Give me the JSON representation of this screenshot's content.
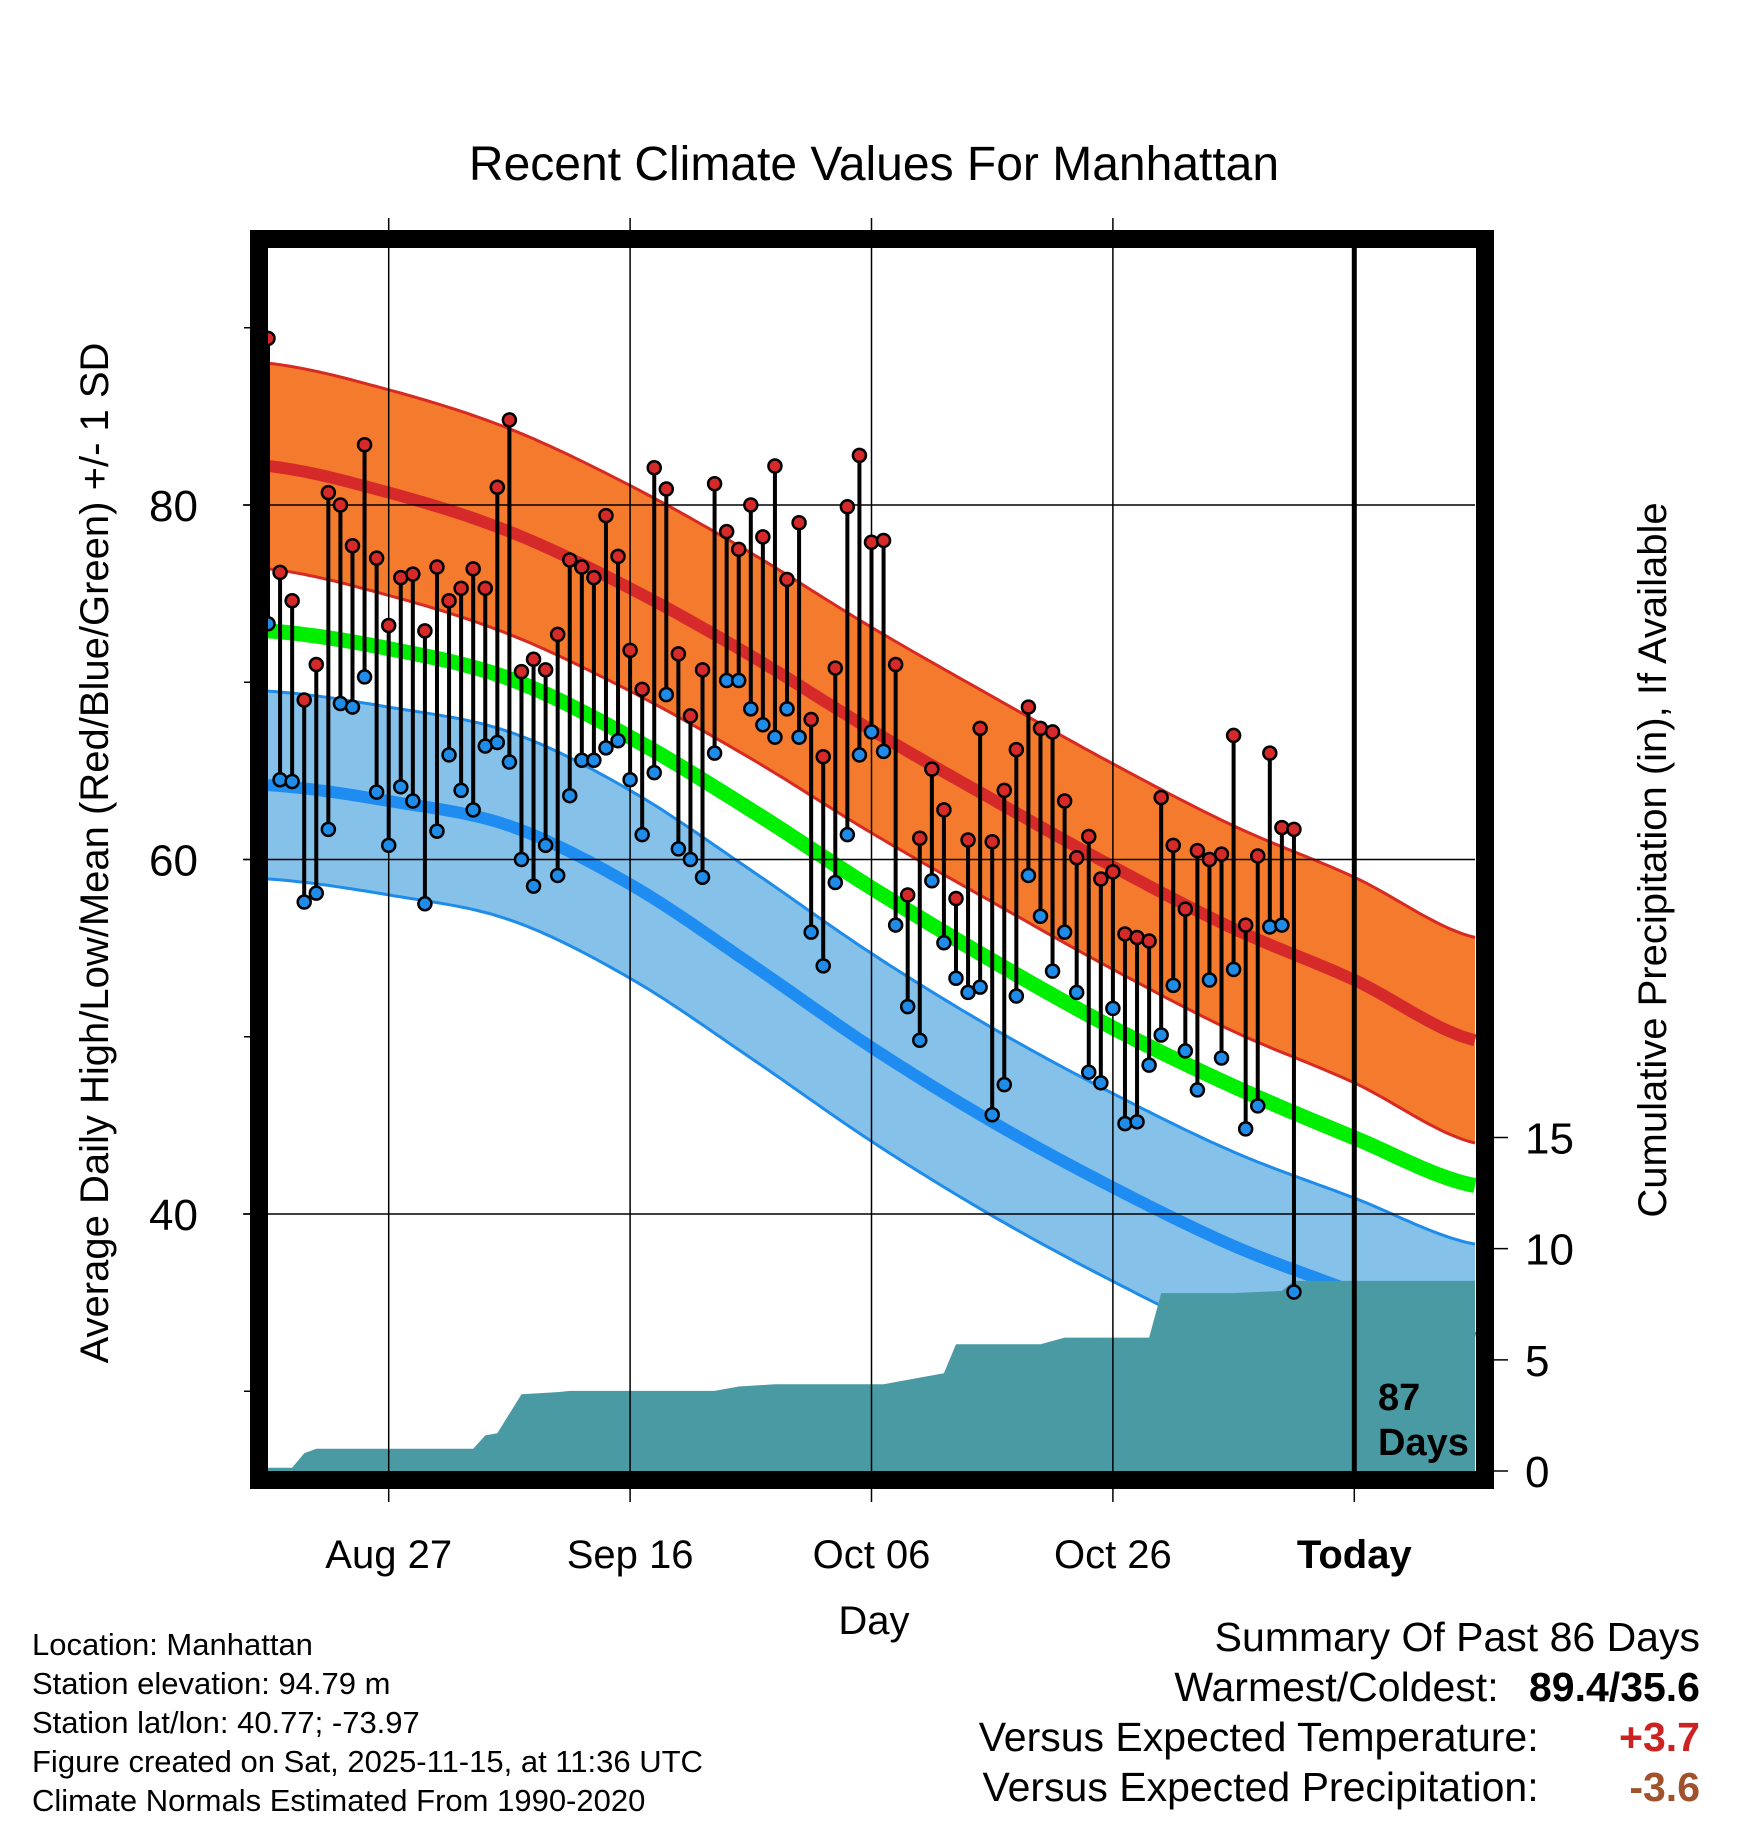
{
  "chart_data": {
    "type": "line",
    "title": "Recent Climate Values For Manhattan",
    "xlabel": "Day",
    "ylabel": "Average Daily High/Low/Mean (Red/Blue/Green) +/- 1 SD",
    "y2label": "Cumulative Precipitation (in), If Available",
    "x_ticks": [
      {
        "day": 10,
        "label": "Aug 27"
      },
      {
        "day": 30,
        "label": "Sep 16"
      },
      {
        "day": 50,
        "label": "Oct 06"
      },
      {
        "day": 70,
        "label": "Oct 26"
      },
      {
        "day": 90,
        "label": "Today"
      }
    ],
    "y_ticks": [
      40,
      60,
      80
    ],
    "y_minor_ticks": [
      30,
      50,
      70,
      90
    ],
    "y2_ticks": [
      0,
      5,
      10,
      15
    ],
    "xlim": [
      0,
      100
    ],
    "ylim": [
      25.5,
      94.5
    ],
    "y2lim": [
      0,
      55
    ],
    "today_day": 90,
    "today_label_line1": "87",
    "today_label_line2": "Days",
    "normals": {
      "days": [
        0,
        10,
        20,
        30,
        40,
        50,
        60,
        70,
        80,
        90,
        100
      ],
      "high": [
        82.2,
        80.7,
        78.5,
        75.3,
        71.5,
        67.3,
        63.4,
        59.6,
        56.1,
        53.2,
        49.8
      ],
      "high_sd": 5.8,
      "low": [
        64.2,
        63.3,
        61.9,
        58.6,
        54.1,
        49.4,
        45.2,
        41.5,
        38.2,
        35.6,
        33.0
      ],
      "low_sd": 5.3,
      "mean": [
        72.9,
        71.9,
        70.2,
        66.9,
        62.8,
        58.4,
        54.3,
        50.5,
        47.2,
        44.3,
        41.6
      ]
    },
    "highs": [
      89.4,
      76.2,
      74.6,
      69.0,
      71.0,
      80.7,
      80.0,
      77.7,
      83.4,
      77.0,
      73.2,
      75.9,
      76.1,
      72.9,
      76.5,
      74.6,
      75.3,
      76.4,
      75.3,
      81.0,
      84.8,
      70.6,
      71.3,
      70.7,
      72.7,
      76.9,
      76.5,
      75.9,
      79.4,
      77.1,
      71.8,
      69.6,
      82.1,
      80.9,
      71.6,
      68.1,
      70.7,
      81.2,
      78.5,
      77.5,
      80.0,
      78.2,
      82.2,
      75.8,
      79.0,
      67.9,
      65.8,
      70.8,
      79.9,
      82.8,
      77.9,
      78.0,
      71.0,
      58.0,
      61.2,
      65.1,
      62.8,
      57.8,
      61.1,
      67.4,
      61.0,
      63.9,
      66.2,
      68.6,
      67.4,
      67.2,
      63.3,
      60.1,
      61.3,
      58.9,
      59.3,
      55.8,
      55.6,
      55.4,
      63.5,
      60.8,
      57.2,
      60.5,
      60.0,
      60.3,
      67.0,
      56.3,
      60.2,
      66.0,
      61.8,
      61.7
    ],
    "lows": [
      73.3,
      64.5,
      64.4,
      57.6,
      58.1,
      61.7,
      68.8,
      68.6,
      70.3,
      63.8,
      60.8,
      64.1,
      63.3,
      57.5,
      61.6,
      65.9,
      63.9,
      62.8,
      66.4,
      66.6,
      65.5,
      60.0,
      58.5,
      60.8,
      59.1,
      63.6,
      65.6,
      65.6,
      66.3,
      66.7,
      64.5,
      61.4,
      64.9,
      69.3,
      60.6,
      60.0,
      59.0,
      66.0,
      70.1,
      70.1,
      68.5,
      67.6,
      66.9,
      68.5,
      66.9,
      55.9,
      54.0,
      58.7,
      61.4,
      65.9,
      67.2,
      66.1,
      56.3,
      51.7,
      49.8,
      58.8,
      55.3,
      53.3,
      52.5,
      52.8,
      45.6,
      47.3,
      52.3,
      59.1,
      56.8,
      53.7,
      55.9,
      52.5,
      48.0,
      47.4,
      51.6,
      45.1,
      45.2,
      48.4,
      50.1,
      52.9,
      49.2,
      47.0,
      53.2,
      48.8,
      53.8,
      44.8,
      46.1,
      56.2,
      56.3,
      35.6
    ],
    "precip_days": [
      0,
      2,
      3,
      4,
      5,
      8,
      12,
      17,
      18,
      19,
      21,
      24,
      25,
      30,
      37,
      39,
      42,
      51,
      54,
      56,
      57,
      64,
      66,
      73,
      74,
      80,
      84,
      85,
      100
    ],
    "precip_cum": [
      0.15,
      0.15,
      0.8,
      1.0,
      1.0,
      1.0,
      1.0,
      1.0,
      1.6,
      1.7,
      3.45,
      3.55,
      3.6,
      3.6,
      3.6,
      3.8,
      3.9,
      3.9,
      4.2,
      4.4,
      5.7,
      5.7,
      6.0,
      6.0,
      8.0,
      8.0,
      8.1,
      8.55,
      8.55
    ]
  },
  "footer": {
    "location": "Location: Manhattan",
    "elevation": "Station elevation: 94.79 m",
    "latlon": "Station lat/lon: 40.77; -73.97",
    "created": "Figure created on Sat, 2025-11-15, at 11:36 UTC",
    "normals": "Climate Normals Estimated From 1990-2020"
  },
  "summary": {
    "title": "Summary Of Past 86 Days",
    "warm_cold_label": "Warmest/Coldest:",
    "warm_cold_value": "89.4/35.6",
    "temp_label": "Versus Expected Temperature:",
    "temp_value": "+3.7",
    "precip_label": "Versus Expected Precipitation:",
    "precip_value": "-3.6",
    "colors": {
      "temp_value": "#cc2222",
      "precip_value": "#a0522d"
    }
  },
  "colors": {
    "high_band": "#f47a2e",
    "high_band_edge": "#d62a22",
    "high_line": "#d62a2a",
    "low_band": "#85c1e8",
    "low_band_edge": "#1e8ce8",
    "low_line": "#1e8cf0",
    "mean_line": "#00ee00",
    "precip": "#4a9aa4",
    "high_dot": "#d62a2a",
    "low_dot": "#1e8ce8"
  }
}
